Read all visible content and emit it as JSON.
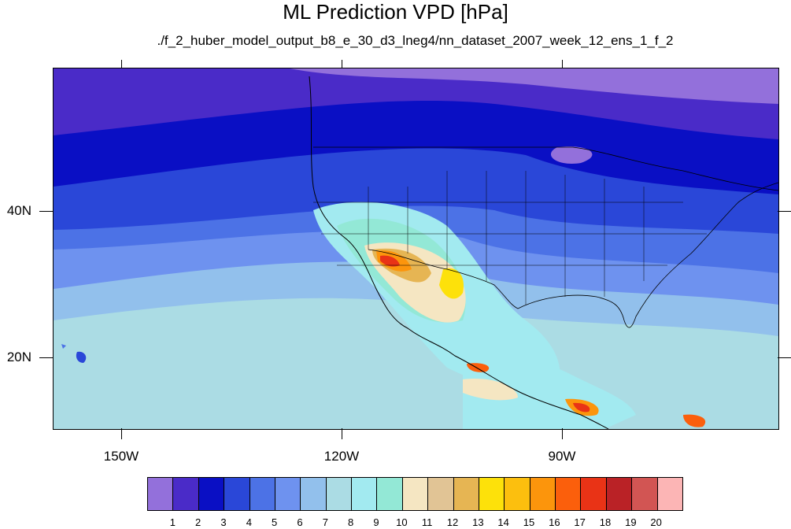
{
  "title": "ML Prediction VPD [hPa]",
  "subtitle": "./f_2_huber_model_output_b8_e_30_d3_lneg4/nn_dataset_2007_week_12_ens_1_f_2",
  "axes": {
    "lat_labels": [
      {
        "value": 40,
        "text": "40N"
      },
      {
        "value": 20,
        "text": "20N"
      }
    ],
    "lon_labels": [
      {
        "value": -150,
        "text": "150W"
      },
      {
        "value": -120,
        "text": "120W"
      },
      {
        "value": -90,
        "text": "90W"
      }
    ],
    "lon_range": [
      -159.5,
      -61
    ],
    "lat_range": [
      10,
      59.5
    ]
  },
  "colorbar": {
    "labels": [
      "1",
      "2",
      "3",
      "4",
      "5",
      "6",
      "7",
      "8",
      "9",
      "10",
      "11",
      "12",
      "13",
      "14",
      "15",
      "16",
      "17",
      "18",
      "19",
      "20"
    ],
    "colors": [
      "#9370db",
      "#4a2bc8",
      "#0a0fc4",
      "#2a47d8",
      "#4c72e6",
      "#6e92ef",
      "#92c0ec",
      "#abdce4",
      "#a2eaf0",
      "#93e8d6",
      "#f5e6c2",
      "#e1c495",
      "#e6b553",
      "#fde10a",
      "#fcbf0e",
      "#fc950c",
      "#fb5f0c",
      "#e93316",
      "#ba2226",
      "#d25553",
      "#fcb5b5"
    ]
  },
  "chart_data": {
    "type": "heatmap",
    "title": "ML Prediction VPD [hPa]",
    "subtitle": "./f_2_huber_model_output_b8_e_30_d3_lneg4/nn_dataset_2007_week_12_ens_1_f_2",
    "variable": "VPD [hPa]",
    "projection": "cylindrical equidistant",
    "extent": {
      "lon": [
        -159.5,
        -61
      ],
      "lat": [
        10,
        59.5
      ]
    },
    "contour_levels": [
      1,
      2,
      3,
      4,
      5,
      6,
      7,
      8,
      9,
      10,
      11,
      12,
      13,
      14,
      15,
      16,
      17,
      18,
      19,
      20
    ],
    "regions": [
      {
        "area": "far north / Canada",
        "vpd_range": [
          0,
          1
        ]
      },
      {
        "area": "northern Pacific & US northern tier",
        "vpd_range": [
          2,
          3
        ]
      },
      {
        "area": "mid-latitude Pacific",
        "vpd_range": [
          3,
          5
        ]
      },
      {
        "area": "subtropical Pacific",
        "vpd_range": [
          6,
          8
        ]
      },
      {
        "area": "SW US / N Mexico desert",
        "vpd_range": [
          12,
          19
        ]
      },
      {
        "area": "Central America Pacific coast",
        "vpd_range": [
          14,
          19
        ]
      }
    ]
  }
}
